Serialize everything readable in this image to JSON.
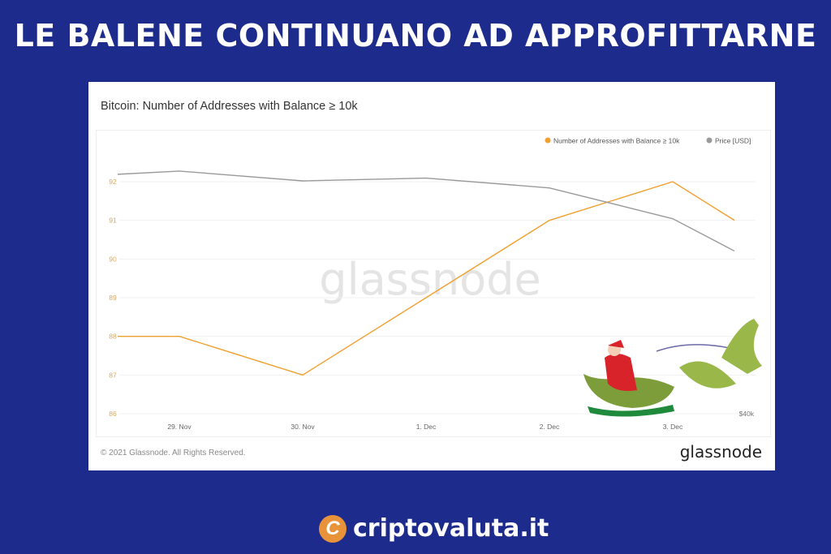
{
  "headline": "LE BALENE CONTINUANO AD APPROFITTARNE",
  "footer": {
    "copyright": "© 2021 Glassnode. All Rights Reserved.",
    "logo": "glassnode",
    "watermark": "glassnode"
  },
  "brand": {
    "name": "criptovaluta.it",
    "icon": "bitcoin-c-icon",
    "icon_glyph": "C"
  },
  "colors": {
    "background": "#1d2c8c",
    "addresses": "#f0a030",
    "price": "#9a9a9a"
  },
  "chart_data": {
    "type": "line",
    "title": "Bitcoin: Number of Addresses with Balance ≥ 10k",
    "legend_position": "top-right",
    "grid": true,
    "x": [
      "2021-11-28T12:00",
      "2021-11-29T00:00",
      "2021-11-30T00:00",
      "2021-12-01T00:00",
      "2021-12-02T00:00",
      "2021-12-03T00:00",
      "2021-12-03T12:00"
    ],
    "x_ticks": [
      "29. Nov",
      "30. Nov",
      "1. Dec",
      "2. Dec",
      "3. Dec"
    ],
    "y_left": {
      "ticks": [
        "86",
        "87",
        "88",
        "89",
        "90",
        "91",
        "92"
      ],
      "ylim": [
        86,
        93
      ]
    },
    "y_right": {
      "ticks": [
        "$40k"
      ],
      "ylim": [
        40000,
        59300
      ]
    },
    "series": [
      {
        "name": "Number of Addresses with Balance ≥ 10k",
        "axis": "left",
        "values": [
          88,
          88,
          87,
          89,
          91,
          92,
          91
        ]
      },
      {
        "name": "Price [USD]",
        "axis": "right",
        "values": [
          57070,
          57300,
          56600,
          56800,
          56100,
          53900,
          51600
        ]
      }
    ]
  }
}
